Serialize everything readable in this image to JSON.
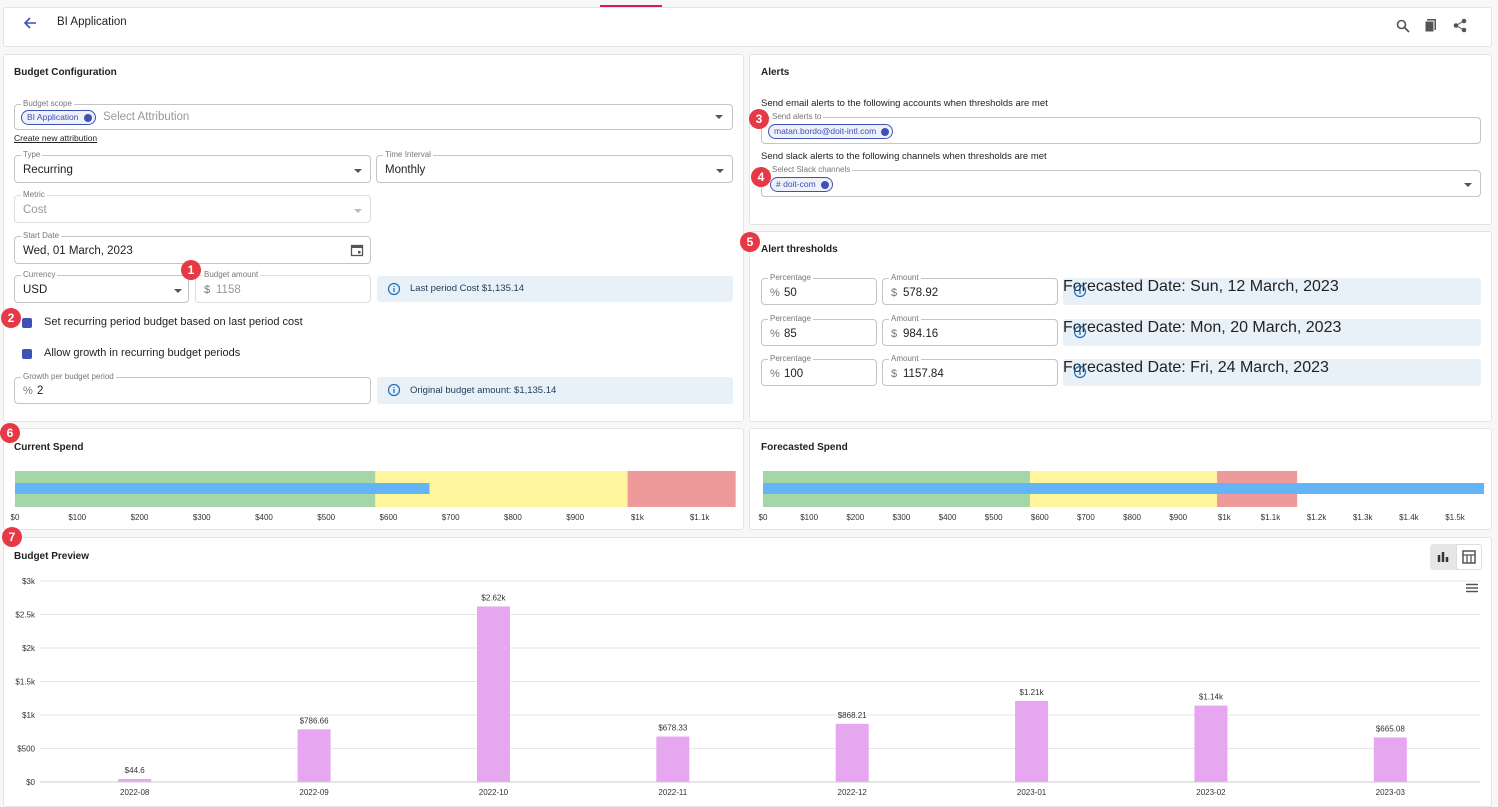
{
  "header": {
    "title": "BI Application"
  },
  "badges": [
    1,
    2,
    3,
    4,
    5,
    6,
    7
  ],
  "budget_config": {
    "title": "Budget Configuration",
    "scope": {
      "label": "Budget scope",
      "chip": "BI Application",
      "placeholder": "Select Attribution"
    },
    "create_link": "Create new attribution",
    "type": {
      "label": "Type",
      "value": "Recurring"
    },
    "time_interval": {
      "label": "Time Interval",
      "value": "Monthly"
    },
    "metric": {
      "label": "Metric",
      "value": "Cost"
    },
    "start_date": {
      "label": "Start Date",
      "value": "Wed, 01 March, 2023"
    },
    "currency": {
      "label": "Currency",
      "value": "USD"
    },
    "budget_amount": {
      "label": "Budget amount",
      "prefix": "$",
      "value": 1158
    },
    "last_period_info": "Last period Cost $1,135.14",
    "checkbox_recurring": "Set recurring period budget based on last period cost",
    "checkbox_growth": "Allow growth in recurring budget periods",
    "growth": {
      "label": "Growth per budget period",
      "prefix": "%",
      "value": 2
    },
    "original_info": "Original budget amount: $1,135.14"
  },
  "alerts": {
    "title": "Alerts",
    "email_text": "Send email alerts to the following accounts when thresholds are met",
    "email_label": "Send alerts to",
    "email_chip": "matan.bordo@doit-intl.com",
    "slack_text": "Send slack alerts to the following channels when thresholds are met",
    "slack_label": "Select Slack channels",
    "slack_chip": "# doit-com"
  },
  "thresholds": {
    "title": "Alert thresholds",
    "rows": [
      {
        "percentage_label": "Percentage",
        "percentage_prefix": "%",
        "percentage": 50,
        "amount_label": "Amount",
        "amount_prefix": "$",
        "amount": 578.92,
        "forecast": "Forecasted Date: Sun, 12 March, 2023"
      },
      {
        "percentage_label": "Percentage",
        "percentage_prefix": "%",
        "percentage": 85,
        "amount_label": "Amount",
        "amount_prefix": "$",
        "amount": 984.16,
        "forecast": "Forecasted Date: Mon, 20 March, 2023"
      },
      {
        "percentage_label": "Percentage",
        "percentage_prefix": "%",
        "percentage": 100,
        "amount_label": "Amount",
        "amount_prefix": "$",
        "amount": 1157.84,
        "forecast": "Forecasted Date: Fri, 24 March, 2023"
      }
    ]
  },
  "chart_data": [
    {
      "type": "bullet",
      "title": "Current Spend",
      "values": [
        666
      ],
      "color": "#64b5f6",
      "thresholds": [
        578.92,
        984.16,
        1157.84
      ],
      "threshold_colors": [
        "#a5d6a7",
        "#fff59d",
        "#ef9a9a"
      ],
      "xlim": [
        0,
        1160
      ],
      "xticks": [
        {
          "value": 0,
          "label": "$0"
        },
        {
          "value": 100,
          "label": "$100"
        },
        {
          "value": 200,
          "label": "$200"
        },
        {
          "value": 300,
          "label": "$300"
        },
        {
          "value": 400,
          "label": "$400"
        },
        {
          "value": 500,
          "label": "$500"
        },
        {
          "value": 600,
          "label": "$600"
        },
        {
          "value": 700,
          "label": "$700"
        },
        {
          "value": 800,
          "label": "$800"
        },
        {
          "value": 900,
          "label": "$900"
        },
        {
          "value": 1000,
          "label": "$1k"
        },
        {
          "value": 1100,
          "label": "$1.1k"
        }
      ]
    },
    {
      "type": "bullet",
      "title": "Forecasted Spend",
      "values": [
        1563
      ],
      "color": "#64b5f6",
      "thresholds": [
        578.92,
        984.16,
        1157.84
      ],
      "threshold_colors": [
        "#a5d6a7",
        "#fff59d",
        "#ef9a9a"
      ],
      "xlim": [
        0,
        1565
      ],
      "xticks": [
        {
          "value": 0,
          "label": "$0"
        },
        {
          "value": 100,
          "label": "$100"
        },
        {
          "value": 200,
          "label": "$200"
        },
        {
          "value": 300,
          "label": "$300"
        },
        {
          "value": 400,
          "label": "$400"
        },
        {
          "value": 500,
          "label": "$500"
        },
        {
          "value": 600,
          "label": "$600"
        },
        {
          "value": 700,
          "label": "$700"
        },
        {
          "value": 800,
          "label": "$800"
        },
        {
          "value": 900,
          "label": "$900"
        },
        {
          "value": 1000,
          "label": "$1k"
        },
        {
          "value": 1100,
          "label": "$1.1k"
        },
        {
          "value": 1200,
          "label": "$1.2k"
        },
        {
          "value": 1300,
          "label": "$1.3k"
        },
        {
          "value": 1400,
          "label": "$1.4k"
        },
        {
          "value": 1500,
          "label": "$1.5k"
        }
      ]
    },
    {
      "type": "bar",
      "title": "Budget Preview",
      "categories": [
        "2022-08",
        "2022-09",
        "2022-10",
        "2022-11",
        "2022-12",
        "2023-01",
        "2023-02",
        "2023-03"
      ],
      "values": [
        44.6,
        786.66,
        2620,
        678.33,
        868.21,
        1210,
        1140,
        665.08
      ],
      "value_labels": [
        "$44.6",
        "$786.66",
        "$2.62k",
        "$678.33",
        "$868.21",
        "$1.21k",
        "$1.14k",
        "$665.08"
      ],
      "color": "#e6a6f0",
      "ylim": [
        0,
        3000
      ],
      "yticks": [
        {
          "value": 0,
          "label": "$0"
        },
        {
          "value": 500,
          "label": "$500"
        },
        {
          "value": 1000,
          "label": "$1k"
        },
        {
          "value": 1500,
          "label": "$1.5k"
        },
        {
          "value": 2000,
          "label": "$2k"
        },
        {
          "value": 2500,
          "label": "$2.5k"
        },
        {
          "value": 3000,
          "label": "$3k"
        }
      ],
      "grid": true
    }
  ]
}
